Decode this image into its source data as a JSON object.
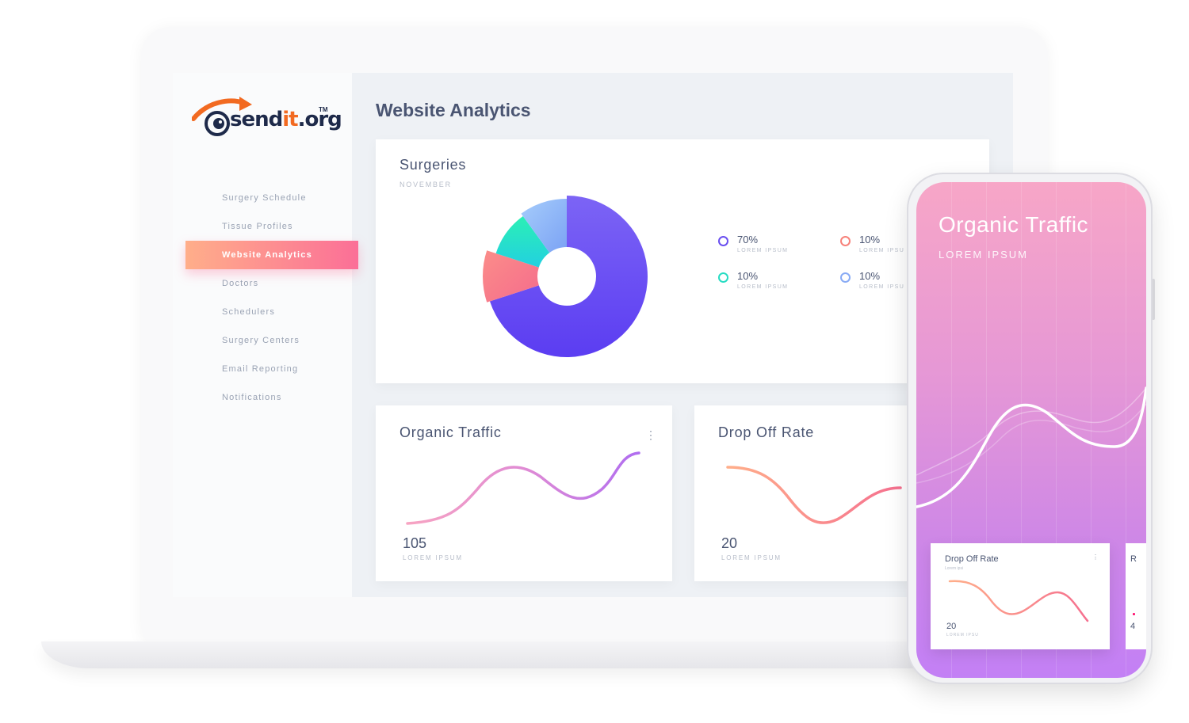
{
  "brand": {
    "logo_part1": "send",
    "logo_part2": "it",
    "logo_part3": ".org",
    "logo_tm": "TM"
  },
  "sidebar": {
    "items": [
      {
        "label": "Surgery Schedule",
        "active": false
      },
      {
        "label": "Tissue Profiles",
        "active": false
      },
      {
        "label": "Website Analytics",
        "active": true
      },
      {
        "label": "Doctors",
        "active": false
      },
      {
        "label": "Schedulers",
        "active": false
      },
      {
        "label": "Surgery Centers",
        "active": false
      },
      {
        "label": "Email Reporting",
        "active": false
      },
      {
        "label": "Notifications",
        "active": false
      }
    ]
  },
  "main": {
    "title": "Website Analytics",
    "surgeries": {
      "title": "Surgeries",
      "subtitle": "NOVEMBER",
      "legend": [
        {
          "value": "70%",
          "label": "LOREM IPSUM",
          "color": "#6a4ff0"
        },
        {
          "value": "10%",
          "label": "LOREM IPSU",
          "color": "#f7827a"
        },
        {
          "value": "10%",
          "label": "LOREM IPSUM",
          "color": "#27dcc3"
        },
        {
          "value": "10%",
          "label": "LOREM IPSU",
          "color": "#89abf5"
        }
      ]
    },
    "organic": {
      "title": "Organic Traffic",
      "value": "105",
      "label": "LOREM IPSUM",
      "menu": "⋮"
    },
    "dropoff": {
      "title": "Drop Off Rate",
      "value": "20",
      "label": "LOREM IPSUM"
    }
  },
  "phone": {
    "title": "Organic Traffic",
    "subtitle": "LOREM IPSUM",
    "card": {
      "title": "Drop Off Rate",
      "sub": "Lorem ipsi",
      "value": "20",
      "label": "LOREM IPSU",
      "menu": "⋮"
    },
    "card2": {
      "title": "R",
      "value": "4"
    }
  },
  "chart_data": [
    {
      "type": "pie",
      "title": "Surgeries",
      "subtitle": "NOVEMBER",
      "categories": [
        "LOREM IPSUM",
        "LOREM IPSU",
        "LOREM IPSUM",
        "LOREM IPSU"
      ],
      "values": [
        70,
        10,
        10,
        10
      ],
      "colors": [
        "#6a4ff0",
        "#f7827a",
        "#27dcc3",
        "#89abf5"
      ],
      "legend": "right"
    }
  ]
}
